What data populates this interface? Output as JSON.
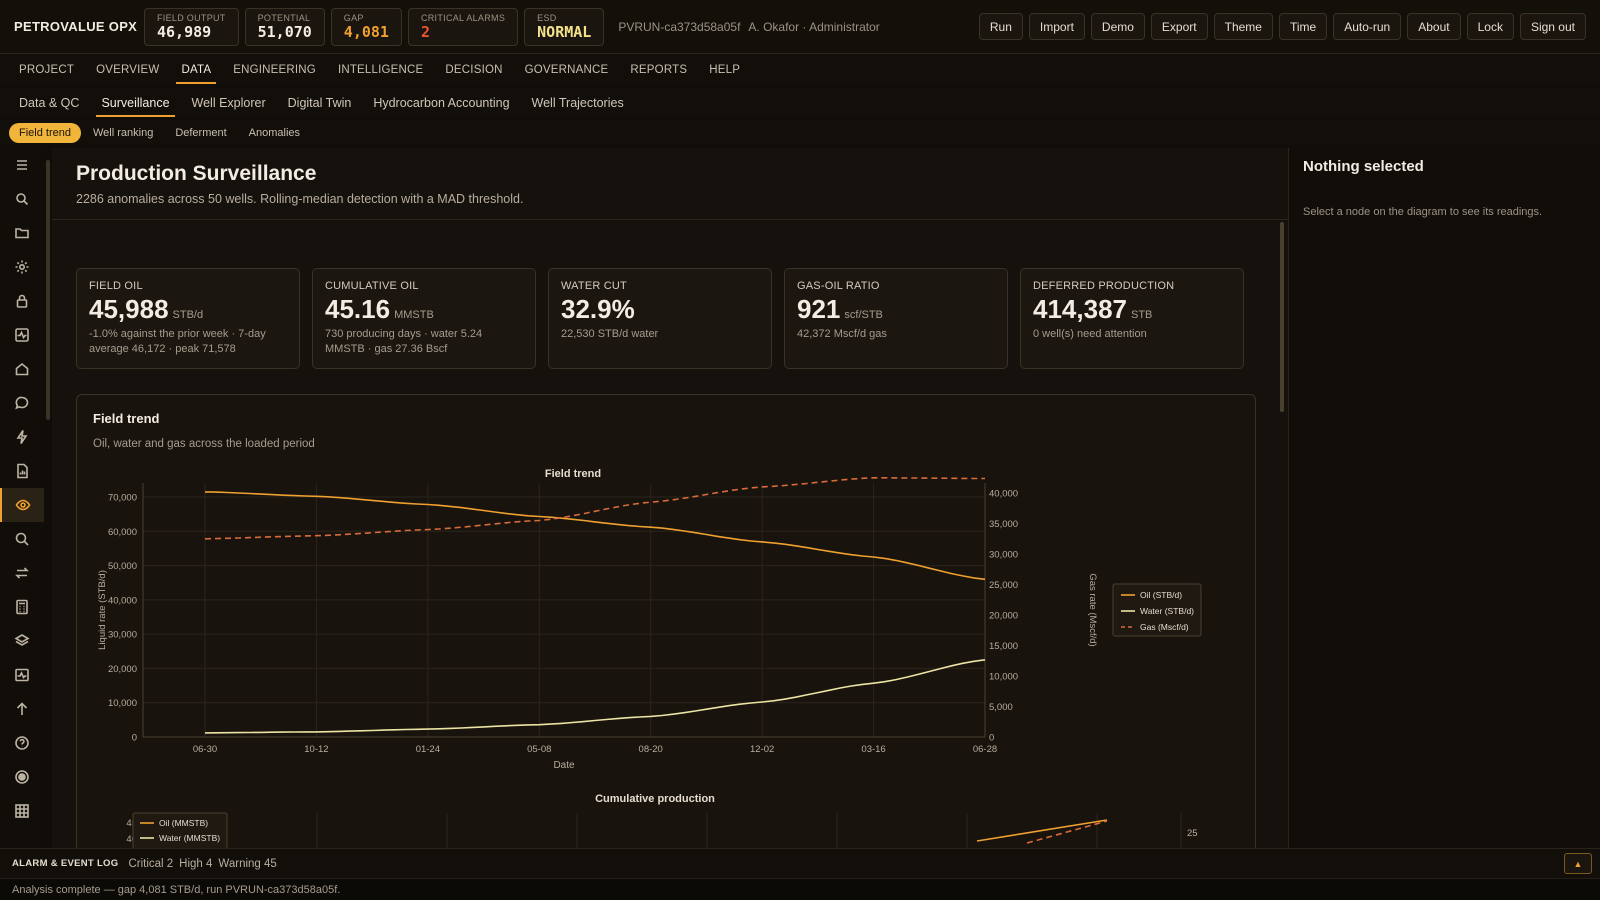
{
  "app": {
    "brand": "PETROVALUE OPX",
    "run_id": "PVRUN-ca373d58a05f",
    "user": "A. Okafor · Administrator"
  },
  "kpis": [
    {
      "label": "FIELD OUTPUT",
      "value": "46,989",
      "color": "#f2ece2"
    },
    {
      "label": "POTENTIAL",
      "value": "51,070",
      "color": "#f2ece2"
    },
    {
      "label": "GAP",
      "value": "4,081",
      "color": "#f0a030"
    },
    {
      "label": "CRITICAL ALARMS",
      "value": "2",
      "color": "#e8542c"
    },
    {
      "label": "ESD",
      "value": "NORMAL",
      "color": "#f3e28a"
    }
  ],
  "actions": [
    "Run",
    "Import",
    "Demo",
    "Export",
    "Theme",
    "Time",
    "Auto-run",
    "About",
    "Lock",
    "Sign out"
  ],
  "main_nav": [
    "PROJECT",
    "OVERVIEW",
    "DATA",
    "ENGINEERING",
    "INTELLIGENCE",
    "DECISION",
    "GOVERNANCE",
    "REPORTS",
    "HELP"
  ],
  "main_nav_active": "DATA",
  "sub_nav": [
    "Data & QC",
    "Surveillance",
    "Well Explorer",
    "Digital Twin",
    "Hydrocarbon Accounting",
    "Well Trajectories"
  ],
  "sub_nav_active": "Surveillance",
  "pill_nav": [
    "Field trend",
    "Well ranking",
    "Deferment",
    "Anomalies"
  ],
  "pill_nav_active": "Field trend",
  "sidebar_icons": [
    "menu-icon",
    "search-icon",
    "folder-icon",
    "gear-icon",
    "lock-icon",
    "pulse-icon",
    "home-icon",
    "chat-icon",
    "bolt-icon",
    "report-icon",
    "eye-icon",
    "magnify-icon",
    "transfer-icon",
    "calculator-icon",
    "layers-icon",
    "monitor-icon",
    "arrow-up-icon",
    "help-icon",
    "target-icon",
    "grid-icon"
  ],
  "sidebar_active": "eye-icon",
  "page": {
    "title": "Production Surveillance",
    "subtitle": "2286 anomalies across 50 wells. Rolling-median detection with a MAD threshold."
  },
  "cards": [
    {
      "label": "FIELD OIL",
      "value": "45,988",
      "unit": "STB/d",
      "note": "-1.0% against the prior week · 7-day average 46,172 · peak 71,578"
    },
    {
      "label": "CUMULATIVE OIL",
      "value": "45.16",
      "unit": "MMSTB",
      "note": "730 producing days · water 5.24 MMSTB · gas 27.36 Bscf"
    },
    {
      "label": "WATER CUT",
      "value": "32.9%",
      "unit": "",
      "note": "22,530 STB/d water"
    },
    {
      "label": "GAS-OIL RATIO",
      "value": "921",
      "unit": "scf/STB",
      "note": "42,372 Mscf/d gas"
    },
    {
      "label": "DEFERRED PRODUCTION",
      "value": "414,387",
      "unit": "STB",
      "note": "0 well(s) need attention"
    }
  ],
  "panel": {
    "title": "Field trend",
    "subtitle": "Oil, water and gas across the loaded period"
  },
  "chart_data": [
    {
      "type": "line",
      "title": "Field trend",
      "xlabel": "Date",
      "ylabel": "Liquid rate (STB/d)",
      "y2label": "Gas rate (Mscf/d)",
      "x": [
        "06-30",
        "10-12",
        "01-24",
        "05-08",
        "08-20",
        "12-02",
        "03-16",
        "06-28"
      ],
      "ylim": [
        0,
        70000
      ],
      "yticks": [
        0,
        10000,
        20000,
        30000,
        40000,
        50000,
        60000,
        70000
      ],
      "y2lim": [
        0,
        40000
      ],
      "y2ticks": [
        0,
        5000,
        10000,
        15000,
        20000,
        25000,
        30000,
        35000,
        40000
      ],
      "grid": true,
      "legend": "right",
      "series": [
        {
          "name": "Oil (STB/d)",
          "axis": "left",
          "style": "solid",
          "color": "#f0a030",
          "values": [
            71500,
            70200,
            67800,
            64300,
            61200,
            56900,
            52500,
            45988
          ]
        },
        {
          "name": "Water (STB/d)",
          "axis": "left",
          "style": "solid",
          "color": "#ece3a4",
          "values": [
            1200,
            1500,
            2300,
            3600,
            6000,
            10200,
            15700,
            22530
          ]
        },
        {
          "name": "Gas (Mscf/d)",
          "axis": "right",
          "style": "dashed",
          "color": "#d96a3a",
          "values": [
            32500,
            33000,
            34000,
            35500,
            38500,
            41000,
            42500,
            42372
          ]
        }
      ]
    },
    {
      "type": "line",
      "title": "Cumulative production",
      "yticks_visible": [
        45,
        40
      ],
      "y2ticks_visible": [
        25
      ],
      "legend": "top-left",
      "series": [
        {
          "name": "Oil (MMSTB)",
          "color": "#f0a030"
        },
        {
          "name": "Water (MMSTB)",
          "color": "#ece3a4"
        }
      ]
    }
  ],
  "right_panel": {
    "title": "Nothing selected",
    "text": "Select a node on the diagram to see its readings."
  },
  "alarm_log": {
    "title": "ALARM & EVENT LOG",
    "critical": "Critical 2",
    "high": "High 4",
    "warning": "Warning 45"
  },
  "status": "Analysis complete — gap 4,081 STB/d, run PVRUN-ca373d58a05f."
}
